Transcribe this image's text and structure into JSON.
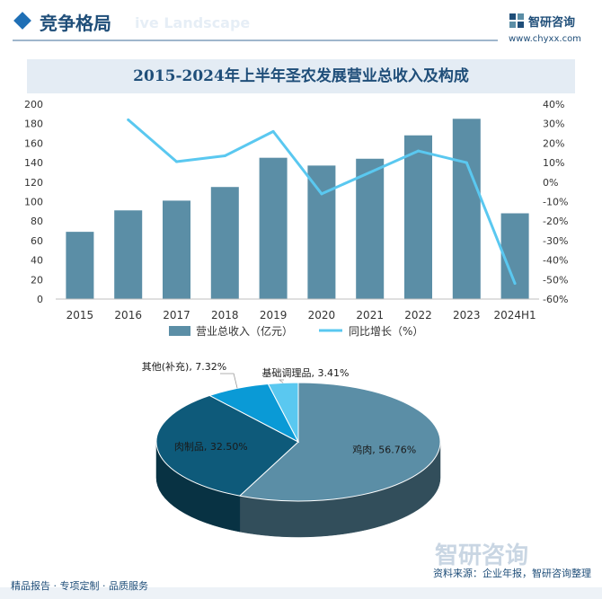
{
  "header": {
    "section_title": "竞争格局",
    "ghost_text": "ive Landscape",
    "logo_name": "智研咨询",
    "logo_url": "www.chyxx.com"
  },
  "watermark": "智研咨询",
  "chart_data": [
    {
      "type": "bar",
      "title": "2015-2024年上半年圣农发展营业总收入及构成",
      "categories": [
        "2015",
        "2016",
        "2017",
        "2018",
        "2019",
        "2020",
        "2021",
        "2022",
        "2023",
        "2024H1"
      ],
      "series": [
        {
          "name": "营业总收入（亿元）",
          "type": "bar",
          "axis": "left",
          "color": "#5b8ea6",
          "values": [
            69,
            91,
            101,
            115,
            145,
            137,
            144,
            168,
            185,
            88
          ]
        },
        {
          "name": "同比增长（%）",
          "type": "line",
          "axis": "right",
          "color": "#5ac8f0",
          "values": [
            null,
            32,
            10.5,
            13.5,
            26,
            -6,
            5,
            16,
            10,
            -52
          ]
        }
      ],
      "y_left": {
        "min": 0,
        "max": 200,
        "ticks": [
          "0",
          "20",
          "40",
          "60",
          "80",
          "100",
          "120",
          "140",
          "160",
          "180",
          "200"
        ]
      },
      "y_right": {
        "min": -60,
        "max": 40,
        "ticks": [
          "-60%",
          "-50%",
          "-40%",
          "-30%",
          "-20%",
          "-10%",
          "0%",
          "10%",
          "20%",
          "30%",
          "40%"
        ]
      },
      "legend": "bottom"
    },
    {
      "type": "pie",
      "slices": [
        {
          "label": "鸡肉, 56.76%",
          "value": 56.76,
          "color": "#5b8ea6"
        },
        {
          "label": "肉制品, 32.50%",
          "value": 32.5,
          "color": "#0e5a7a"
        },
        {
          "label": "其他(补充), 7.32%",
          "value": 7.32,
          "color": "#0a9ad6"
        },
        {
          "label": "基础调理品, 3.41%",
          "value": 3.41,
          "color": "#5ac8f0"
        }
      ]
    }
  ],
  "footer": {
    "left": "精品报告 · 专项定制 · 品质服务",
    "source": "资料来源：企业年报，智研咨询整理"
  }
}
